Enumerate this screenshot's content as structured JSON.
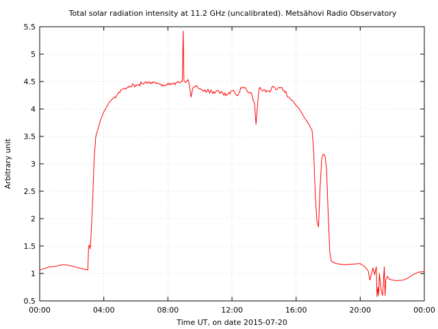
{
  "chart_data": {
    "type": "line",
    "title": "Total solar radiation intensity at 11.2 GHz (uncalibrated). Metsähovi Radio Observatory",
    "xlabel": "Time UT, on date 2015-07-20",
    "ylabel": "Arbitrary unit",
    "xlim": [
      0,
      24
    ],
    "ylim": [
      0.5,
      5.5
    ],
    "x_ticks": [
      0,
      4,
      8,
      12,
      16,
      20,
      24
    ],
    "x_tick_labels": [
      "00:00",
      "04:00",
      "08:00",
      "12:00",
      "16:00",
      "20:00",
      "00:00"
    ],
    "y_ticks": [
      0.5,
      1,
      1.5,
      2,
      2.5,
      3,
      3.5,
      4,
      4.5,
      5,
      5.5
    ],
    "y_tick_labels": [
      "0.5",
      "1",
      "1.5",
      "2",
      "2.5",
      "3",
      "3.5",
      "4",
      "4.5",
      "5",
      "5.5"
    ],
    "grid": true,
    "series": [
      {
        "color": "#ff0000",
        "x": [
          0.0,
          0.3,
          0.6,
          1.0,
          1.4,
          1.8,
          2.2,
          2.6,
          2.9,
          3.0,
          3.05,
          3.1,
          3.15,
          3.2,
          3.3,
          3.4,
          3.5,
          3.6,
          3.7,
          3.8,
          4.0,
          4.3,
          4.6,
          5.0,
          5.3,
          5.6,
          6.0,
          6.5,
          7.0,
          7.5,
          8.0,
          8.5,
          8.9,
          8.95,
          9.0,
          9.05,
          9.1,
          9.3,
          9.45,
          9.55,
          9.7,
          9.9,
          10.2,
          10.5,
          10.8,
          11.0,
          11.2,
          11.5,
          11.8,
          12.0,
          12.3,
          12.6,
          12.9,
          13.2,
          13.4,
          13.5,
          13.6,
          13.7,
          13.8,
          14.0,
          14.3,
          14.6,
          14.8,
          15.0,
          15.3,
          15.6,
          15.9,
          16.2,
          16.5,
          16.8,
          17.0,
          17.1,
          17.2,
          17.3,
          17.4,
          17.5,
          17.6,
          17.7,
          17.8,
          17.9,
          18.0,
          18.1,
          18.2,
          18.5,
          19.0,
          19.5,
          20.0,
          20.3,
          20.5,
          20.6,
          20.8,
          20.9,
          21.0,
          21.05,
          21.1,
          21.15,
          21.2,
          21.3,
          21.4,
          21.5,
          21.55,
          21.6,
          21.7,
          21.8,
          22.0,
          22.3,
          22.7,
          23.0,
          23.3,
          23.6,
          24.0
        ],
        "y": [
          1.06,
          1.09,
          1.12,
          1.13,
          1.16,
          1.15,
          1.12,
          1.09,
          1.07,
          1.06,
          1.48,
          1.52,
          1.45,
          1.65,
          2.3,
          3.1,
          3.5,
          3.6,
          3.7,
          3.8,
          3.95,
          4.1,
          4.2,
          4.3,
          4.38,
          4.42,
          4.44,
          4.46,
          4.46,
          4.45,
          4.47,
          4.48,
          4.5,
          5.42,
          4.52,
          4.5,
          4.48,
          4.5,
          4.22,
          4.38,
          4.4,
          4.38,
          4.32,
          4.36,
          4.28,
          4.32,
          4.3,
          4.25,
          4.3,
          4.33,
          4.25,
          4.38,
          4.35,
          4.3,
          4.12,
          3.72,
          4.1,
          4.38,
          4.36,
          4.35,
          4.33,
          4.4,
          4.35,
          4.38,
          4.3,
          4.2,
          4.1,
          4.0,
          3.85,
          3.72,
          3.6,
          3.2,
          2.4,
          1.95,
          1.85,
          2.6,
          3.1,
          3.18,
          3.15,
          2.9,
          2.1,
          1.4,
          1.22,
          1.18,
          1.16,
          1.17,
          1.18,
          1.12,
          1.05,
          0.88,
          1.1,
          0.98,
          1.12,
          0.58,
          0.75,
          0.6,
          1.0,
          0.7,
          0.6,
          1.12,
          0.6,
          0.88,
          0.95,
          0.9,
          0.88,
          0.87,
          0.88,
          0.92,
          0.98,
          1.02,
          1.04
        ]
      }
    ]
  }
}
